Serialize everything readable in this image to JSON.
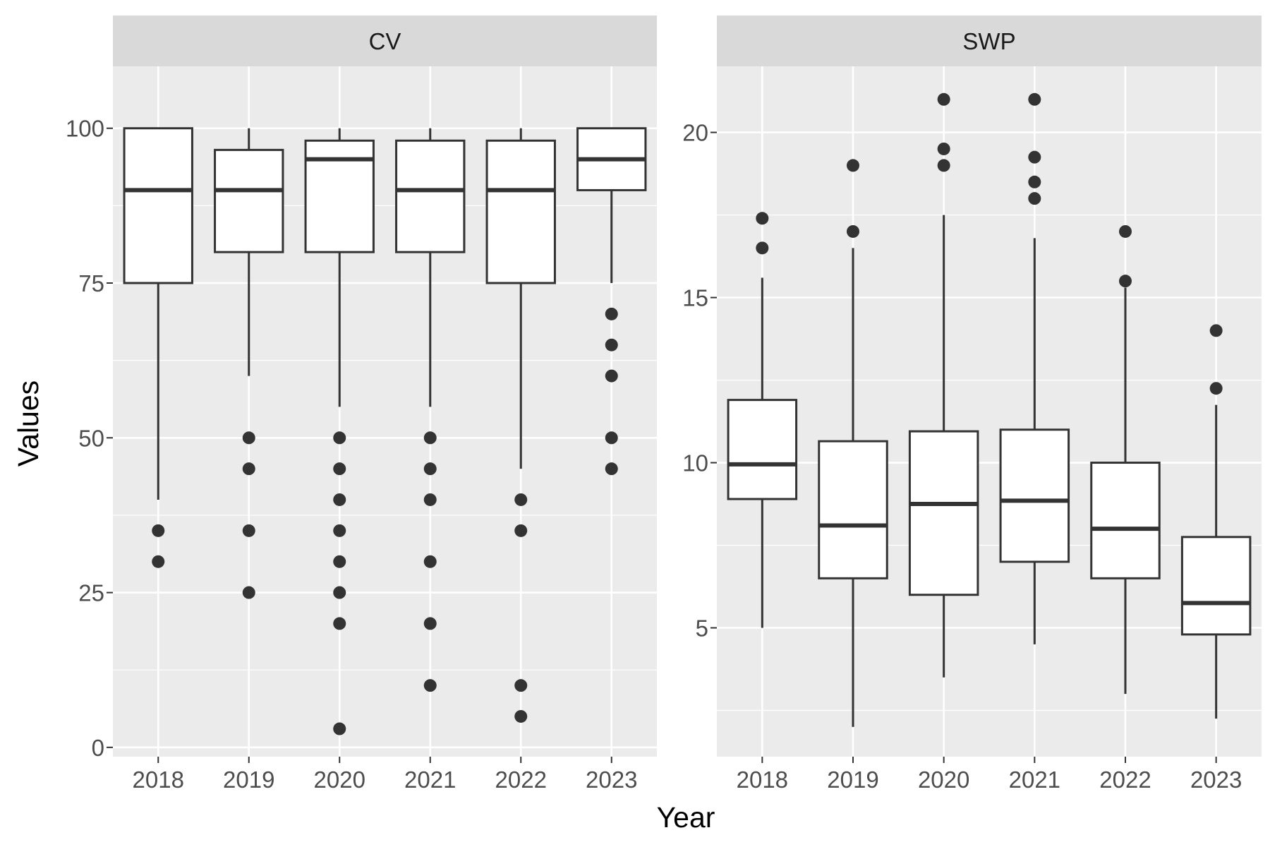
{
  "xlabel": "Year",
  "ylabel": "Values",
  "colors": {
    "panel_background": "#EBEBEB",
    "strip_background": "#D9D9D9",
    "grid": "#FFFFFF",
    "box_fill": "#FFFFFF",
    "box_line": "#333333"
  },
  "chart_data": [
    {
      "type": "box",
      "facet": "CV",
      "categories": [
        "2018",
        "2019",
        "2020",
        "2021",
        "2022",
        "2023"
      ],
      "ylim": [
        -1.5,
        110
      ],
      "yticks": [
        "0",
        "25",
        "50",
        "75",
        "100"
      ],
      "grid": true,
      "series": [
        {
          "category": "2018",
          "whisker_low": 40,
          "q1": 75,
          "median": 90,
          "q3": 100,
          "whisker_high": 100,
          "outliers": [
            35,
            30
          ]
        },
        {
          "category": "2019",
          "whisker_low": 60,
          "q1": 80,
          "median": 90,
          "q3": 96.5,
          "whisker_high": 100,
          "outliers": [
            50,
            45,
            35,
            25
          ]
        },
        {
          "category": "2020",
          "whisker_low": 55,
          "q1": 80,
          "median": 95,
          "q3": 98,
          "whisker_high": 100,
          "outliers": [
            50,
            45,
            40,
            35,
            30,
            25,
            20,
            3
          ]
        },
        {
          "category": "2021",
          "whisker_low": 55,
          "q1": 80,
          "median": 90,
          "q3": 98,
          "whisker_high": 100,
          "outliers": [
            50,
            45,
            40,
            30,
            20,
            10
          ]
        },
        {
          "category": "2022",
          "whisker_low": 45,
          "q1": 75,
          "median": 90,
          "q3": 98,
          "whisker_high": 100,
          "outliers": [
            40,
            35,
            10,
            5
          ]
        },
        {
          "category": "2023",
          "whisker_low": 75,
          "q1": 90,
          "median": 95,
          "q3": 100,
          "whisker_high": 100,
          "outliers": [
            70,
            65,
            60,
            50,
            45
          ]
        }
      ]
    },
    {
      "type": "box",
      "facet": "SWP",
      "categories": [
        "2018",
        "2019",
        "2020",
        "2021",
        "2022",
        "2023"
      ],
      "ylim": [
        1.1,
        22
      ],
      "yticks": [
        "5",
        "10",
        "15",
        "20"
      ],
      "grid": true,
      "series": [
        {
          "category": "2018",
          "whisker_low": 5.0,
          "q1": 8.9,
          "median": 9.95,
          "q3": 11.9,
          "whisker_high": 15.6,
          "outliers": [
            17.4,
            16.5
          ]
        },
        {
          "category": "2019",
          "whisker_low": 2.0,
          "q1": 6.5,
          "median": 8.1,
          "q3": 10.65,
          "whisker_high": 16.5,
          "outliers": [
            19.0,
            17.0
          ]
        },
        {
          "category": "2020",
          "whisker_low": 3.5,
          "q1": 6.0,
          "median": 8.75,
          "q3": 10.95,
          "whisker_high": 17.5,
          "outliers": [
            21.0,
            19.5,
            19.0
          ]
        },
        {
          "category": "2021",
          "whisker_low": 4.5,
          "q1": 7.0,
          "median": 8.85,
          "q3": 11.0,
          "whisker_high": 16.8,
          "outliers": [
            21.0,
            19.25,
            18.5,
            18.0
          ]
        },
        {
          "category": "2022",
          "whisker_low": 3.0,
          "q1": 6.5,
          "median": 8.0,
          "q3": 10.0,
          "whisker_high": 15.3,
          "outliers": [
            17.0,
            15.5
          ]
        },
        {
          "category": "2023",
          "whisker_low": 2.25,
          "q1": 4.8,
          "median": 5.75,
          "q3": 7.75,
          "whisker_high": 11.75,
          "outliers": [
            14.0,
            12.25
          ]
        }
      ]
    }
  ]
}
